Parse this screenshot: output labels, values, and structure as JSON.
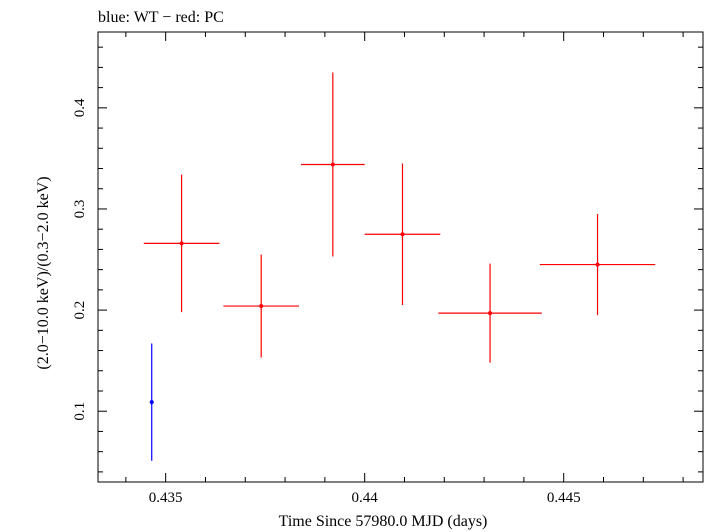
{
  "chart_data": {
    "type": "scatter",
    "title": "blue: WT − red: PC",
    "xlabel": "Time Since 57980.0 MJD (days)",
    "ylabel": "(2.0−10.0 keV)/(0.3−2.0 keV)",
    "xlim": [
      0.4333,
      0.4485
    ],
    "ylim": [
      0.03,
      0.475
    ],
    "x_ticks": [
      {
        "value": 0.435,
        "label": "0.435"
      },
      {
        "value": 0.44,
        "label": "0.44"
      },
      {
        "value": 0.445,
        "label": "0.445"
      }
    ],
    "y_ticks": [
      {
        "value": 0.1,
        "label": "0.1"
      },
      {
        "value": 0.2,
        "label": "0.2"
      },
      {
        "value": 0.3,
        "label": "0.3"
      },
      {
        "value": 0.4,
        "label": "0.4"
      }
    ],
    "grid": false,
    "series": [
      {
        "name": "WT",
        "color": "#0000ff",
        "points": [
          {
            "x": 0.43465,
            "y": 0.109,
            "xerr_lo": 0.0,
            "xerr_hi": 0.0,
            "yerr_lo": 0.058,
            "yerr_hi": 0.058
          }
        ]
      },
      {
        "name": "PC",
        "color": "#ff0000",
        "points": [
          {
            "x": 0.4354,
            "y": 0.266,
            "xerr_lo": 0.00095,
            "xerr_hi": 0.00095,
            "yerr_lo": 0.068,
            "yerr_hi": 0.068
          },
          {
            "x": 0.4374,
            "y": 0.204,
            "xerr_lo": 0.00095,
            "xerr_hi": 0.00095,
            "yerr_lo": 0.051,
            "yerr_hi": 0.051
          },
          {
            "x": 0.4392,
            "y": 0.344,
            "xerr_lo": 0.0008,
            "xerr_hi": 0.0008,
            "yerr_lo": 0.091,
            "yerr_hi": 0.091
          },
          {
            "x": 0.44095,
            "y": 0.275,
            "xerr_lo": 0.00095,
            "xerr_hi": 0.00095,
            "yerr_lo": 0.07,
            "yerr_hi": 0.07
          },
          {
            "x": 0.44315,
            "y": 0.197,
            "xerr_lo": 0.0013,
            "xerr_hi": 0.0013,
            "yerr_lo": 0.049,
            "yerr_hi": 0.049
          },
          {
            "x": 0.44585,
            "y": 0.245,
            "xerr_lo": 0.00145,
            "xerr_hi": 0.00145,
            "yerr_lo": 0.05,
            "yerr_hi": 0.05
          }
        ]
      }
    ]
  }
}
